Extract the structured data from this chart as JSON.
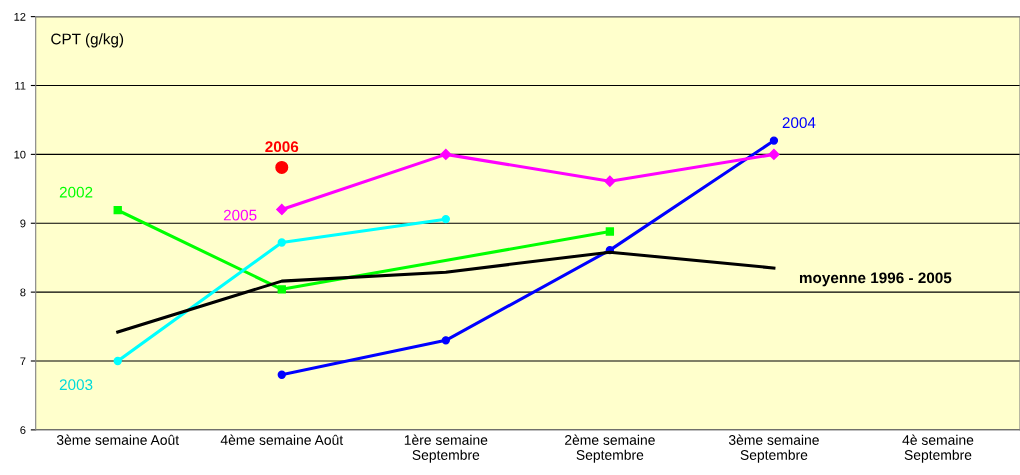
{
  "chart_data": {
    "type": "line",
    "ylabel": "CPT (g/kg)",
    "categories": [
      "3ème semaine Août",
      "4ème semaine Août",
      "1ère semaine\nSeptembre",
      "2ème semaine\nSeptembre",
      "3ème semaine\nSeptembre",
      "4è semaine\nSeptembre"
    ],
    "series": [
      {
        "name": "2002",
        "color": "#00ff00",
        "marker": "square",
        "values": [
          9.19,
          8.04,
          null,
          8.88,
          null,
          null
        ]
      },
      {
        "name": "2003",
        "color": "#00ffff",
        "marker": "circle",
        "values": [
          7.0,
          8.72,
          9.06,
          null,
          null,
          null
        ]
      },
      {
        "name": "2004",
        "color": "#0000ff",
        "marker": "circle",
        "values": [
          null,
          6.8,
          7.3,
          8.61,
          10.2,
          null
        ]
      },
      {
        "name": "2005",
        "color": "#ff00ff",
        "marker": "diamond",
        "values": [
          null,
          9.2,
          10.0,
          9.61,
          10.0,
          null
        ]
      },
      {
        "name": "2006",
        "color": "#ff0000",
        "marker": "circle",
        "type": "scatter",
        "values": [
          null,
          9.81,
          null,
          null,
          null,
          null
        ]
      },
      {
        "name": "moyenne 1996 - 2005",
        "color": "#000000",
        "marker": "none",
        "values": [
          7.42,
          8.16,
          8.29,
          8.58,
          8.35,
          null
        ]
      }
    ],
    "ylim": [
      6,
      12
    ],
    "yticks": [
      6,
      7,
      8,
      9,
      10,
      11,
      12
    ],
    "grid": "y",
    "legend": false
  }
}
